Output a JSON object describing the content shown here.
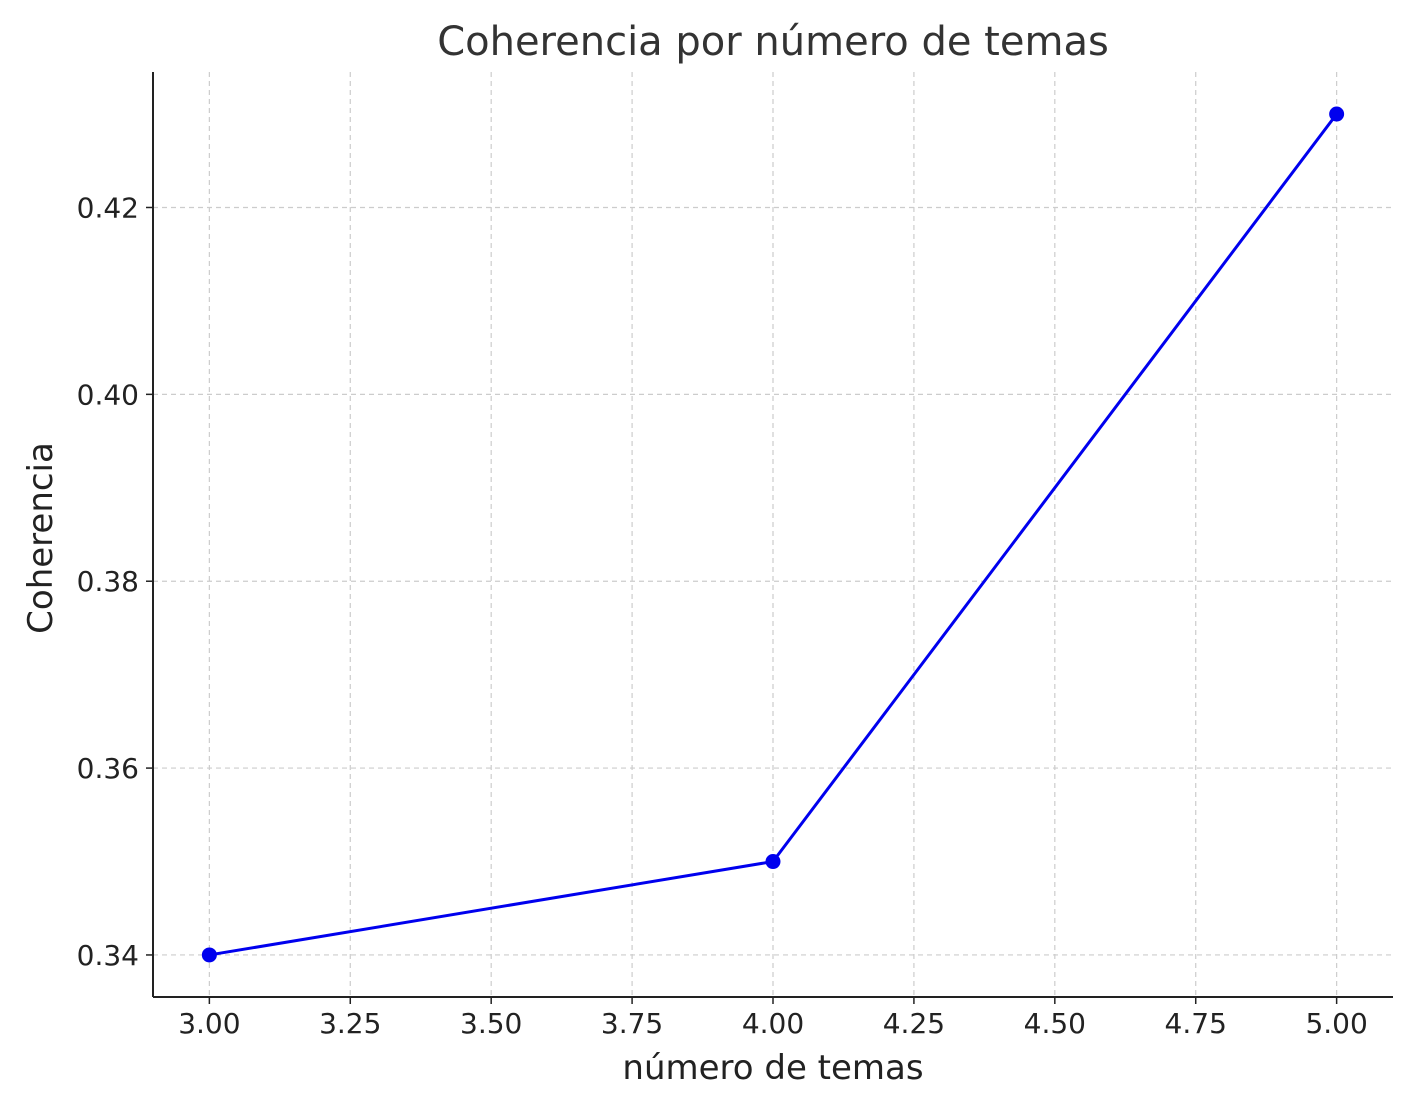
{
  "chart_data": {
    "type": "line",
    "title": "Coherencia por número de temas",
    "xlabel": "número de temas",
    "ylabel": "Coherencia",
    "x": [
      3,
      4,
      5
    ],
    "series": [
      {
        "values": [
          0.34,
          0.35,
          0.43
        ],
        "color": "#0000ee",
        "marker": "circle"
      }
    ],
    "xlim": [
      2.9,
      5.1
    ],
    "ylim": [
      0.3355,
      0.4345
    ],
    "x_ticks": [
      "3.00",
      "3.25",
      "3.50",
      "3.75",
      "4.00",
      "4.25",
      "4.50",
      "4.75",
      "5.00"
    ],
    "y_ticks": [
      "0.34",
      "0.36",
      "0.38",
      "0.40",
      "0.42"
    ],
    "grid": true,
    "grid_style": "dashed",
    "legend": "none"
  }
}
